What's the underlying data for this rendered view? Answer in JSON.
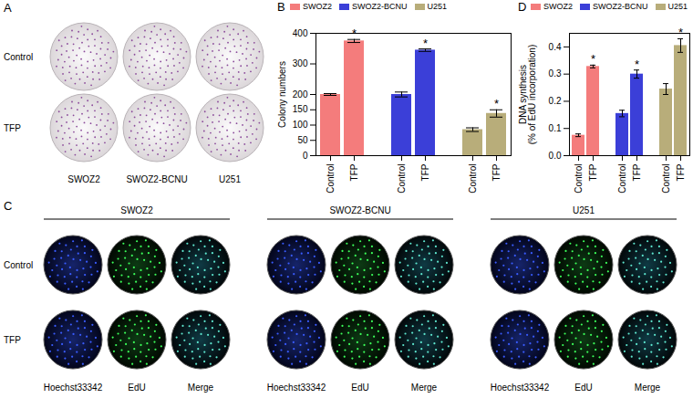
{
  "chart_data": [
    {
      "type": "bar",
      "title": "B",
      "y_label": "Colony numbers",
      "categories": [
        "Control",
        "TFP"
      ],
      "series": [
        {
          "name": "SWOZ2",
          "color": "#f47c7c",
          "values": [
            200,
            375
          ],
          "errors": [
            3,
            5
          ]
        },
        {
          "name": "SWOZ2-BCNU",
          "color": "#3b3fd8",
          "values": [
            200,
            345
          ],
          "errors": [
            8,
            4
          ]
        },
        {
          "name": "U251",
          "color": "#b8ad7a",
          "values": [
            85,
            138
          ],
          "errors": [
            6,
            12
          ]
        }
      ],
      "annotations": [
        {
          "series": "SWOZ2",
          "category": "TFP",
          "text": "*"
        },
        {
          "series": "SWOZ2-BCNU",
          "category": "TFP",
          "text": "*"
        },
        {
          "series": "U251",
          "category": "TFP",
          "text": "*"
        }
      ],
      "ylim": [
        0,
        400
      ],
      "yticks": [
        0,
        50,
        100,
        150,
        200,
        300,
        400
      ],
      "legend": "top"
    },
    {
      "type": "bar",
      "title": "D",
      "y_label": "DNA synthesis\n(% of EdU incorporation)",
      "categories": [
        "Control",
        "TFP"
      ],
      "series": [
        {
          "name": "SWOZ2",
          "color": "#f47c7c",
          "values": [
            0.075,
            0.328
          ],
          "errors": [
            0.005,
            0.005
          ]
        },
        {
          "name": "SWOZ2-BCNU",
          "color": "#3b3fd8",
          "values": [
            0.155,
            0.3
          ],
          "errors": [
            0.012,
            0.015
          ]
        },
        {
          "name": "U251",
          "color": "#b8ad7a",
          "values": [
            0.245,
            0.405
          ],
          "errors": [
            0.02,
            0.025
          ]
        }
      ],
      "annotations": [
        {
          "series": "SWOZ2",
          "category": "TFP",
          "text": "*"
        },
        {
          "series": "SWOZ2-BCNU",
          "category": "TFP",
          "text": "*"
        },
        {
          "series": "U251",
          "category": "TFP",
          "text": "*"
        }
      ],
      "ylim": [
        0,
        0.45
      ],
      "yticks": [
        {
          "value": 0,
          "label": "0.0"
        },
        0.1,
        0.2,
        0.3,
        0.4
      ],
      "legend": "top"
    }
  ],
  "panel_A": {
    "label": "A",
    "rows": [
      "Control",
      "TFP"
    ],
    "columns": [
      "SWOZ2",
      "SWOZ2-BCNU",
      "U251"
    ]
  },
  "panel_C": {
    "label": "C",
    "groups": [
      "SWOZ2",
      "SWOZ2-BCNU",
      "U251"
    ],
    "rows": [
      "Control",
      "TFP"
    ],
    "channels": [
      "Hoechst33342",
      "EdU",
      "Merge"
    ]
  }
}
